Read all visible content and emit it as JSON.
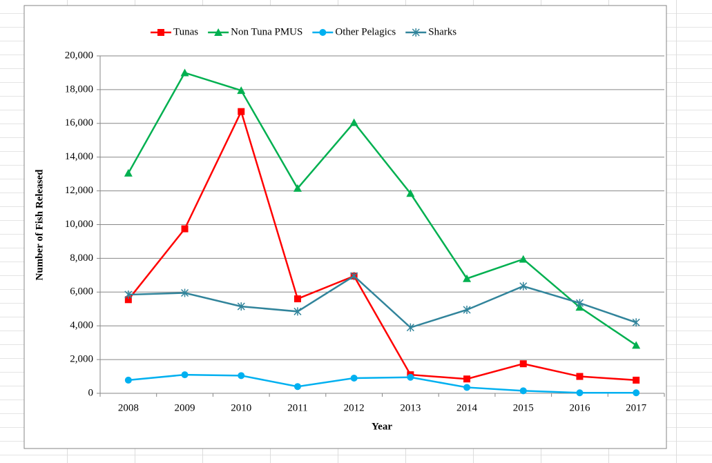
{
  "chart_data": {
    "type": "line",
    "xlabel": "Year",
    "ylabel": "Number of Fish Released",
    "categories": [
      "2008",
      "2009",
      "2010",
      "2011",
      "2012",
      "2013",
      "2014",
      "2015",
      "2016",
      "2017"
    ],
    "series": [
      {
        "name": "Tunas",
        "color": "#ff0000",
        "marker": "square",
        "values": [
          5550,
          9750,
          16700,
          5600,
          6950,
          1100,
          850,
          1750,
          1000,
          780
        ]
      },
      {
        "name": "Non Tuna PMUS",
        "color": "#00b050",
        "marker": "triangle",
        "values": [
          13050,
          19000,
          17950,
          12150,
          16050,
          11850,
          6800,
          7950,
          5100,
          2850
        ]
      },
      {
        "name": "Other Pelagics",
        "color": "#00b0f0",
        "marker": "circle",
        "values": [
          780,
          1100,
          1050,
          400,
          900,
          950,
          350,
          150,
          30,
          30
        ]
      },
      {
        "name": "Sharks",
        "color": "#31849b",
        "marker": "star",
        "values": [
          5850,
          5950,
          5150,
          4850,
          6950,
          3900,
          4950,
          6350,
          5350,
          4200
        ]
      }
    ],
    "ylim": [
      0,
      20000
    ],
    "yticks": [
      0,
      {
        "value": 2000,
        "label": "2,000"
      },
      {
        "value": 4000,
        "label": "4,000"
      },
      {
        "value": 6000,
        "label": "6,000"
      },
      {
        "value": 8000,
        "label": "8,000"
      },
      {
        "value": 10000,
        "label": "10,000"
      },
      {
        "value": 12000,
        "label": "12,000"
      },
      {
        "value": 14000,
        "label": "14,000"
      },
      {
        "value": 16000,
        "label": "16,000"
      },
      {
        "value": 18000,
        "label": "18,000"
      },
      {
        "value": 20000,
        "label": "20,000"
      }
    ],
    "grid": true,
    "legend": "top"
  }
}
